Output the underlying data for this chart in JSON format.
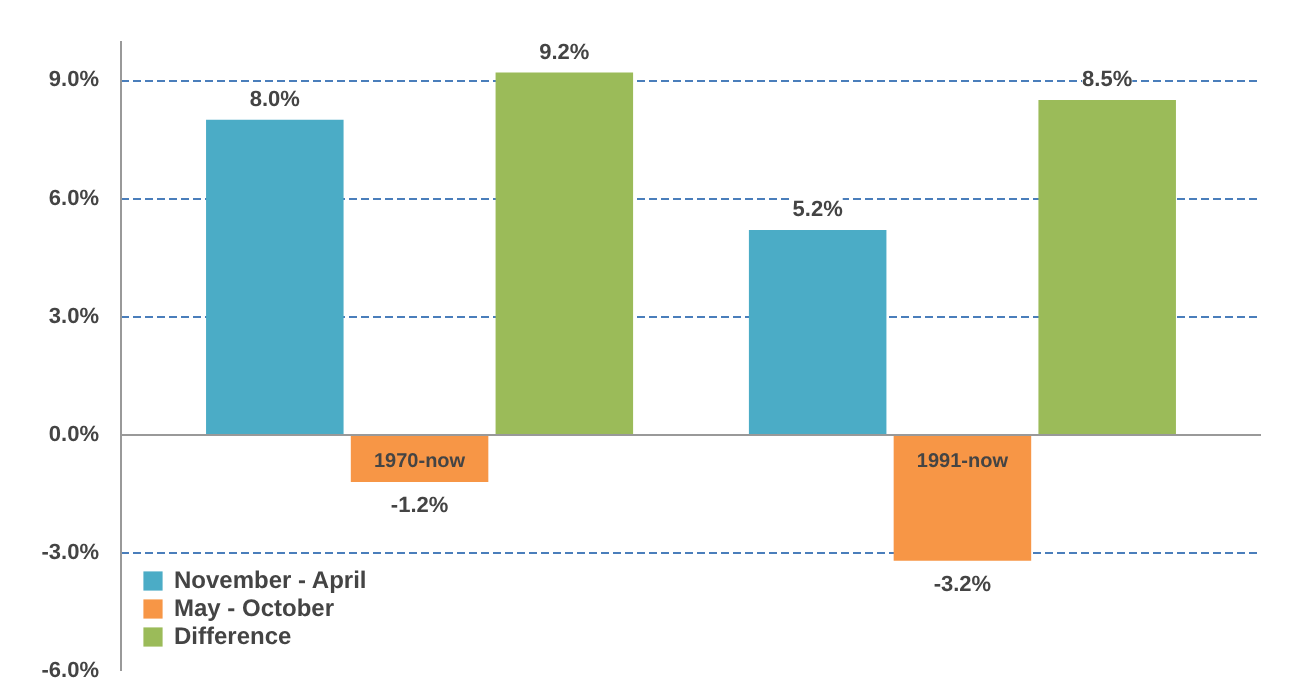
{
  "chart_data": {
    "type": "bar",
    "categories": [
      null,
      null
    ],
    "series": [
      {
        "name": "November - April",
        "color": "#4bacc6",
        "values": [
          8.0,
          5.2
        ],
        "value_labels": [
          "8.0%",
          "5.2%"
        ]
      },
      {
        "name": "May - October",
        "color": "#f79646",
        "values": [
          -1.2,
          -3.2
        ],
        "value_labels": [
          "-1.2%",
          "-3.2%"
        ]
      },
      {
        "name": "Difference",
        "color": "#9bbb59",
        "values": [
          9.2,
          8.5
        ],
        "value_labels": [
          "9.2%",
          "8.5%"
        ]
      }
    ],
    "ylim": [
      -6,
      10
    ],
    "yticks": [
      {
        "value": -6,
        "label": "-6.0%"
      },
      {
        "value": -3,
        "label": "-3.0%"
      },
      {
        "value": 0,
        "label": "0.0%"
      },
      {
        "value": 3,
        "label": "3.0%"
      },
      {
        "value": 6,
        "label": "6.0%"
      },
      {
        "value": 9,
        "label": "9.0%"
      }
    ],
    "grid": "y",
    "legend": "bottom left",
    "tick_labels": "y",
    "annotations": [
      "1970-now",
      "1991-now"
    ]
  }
}
